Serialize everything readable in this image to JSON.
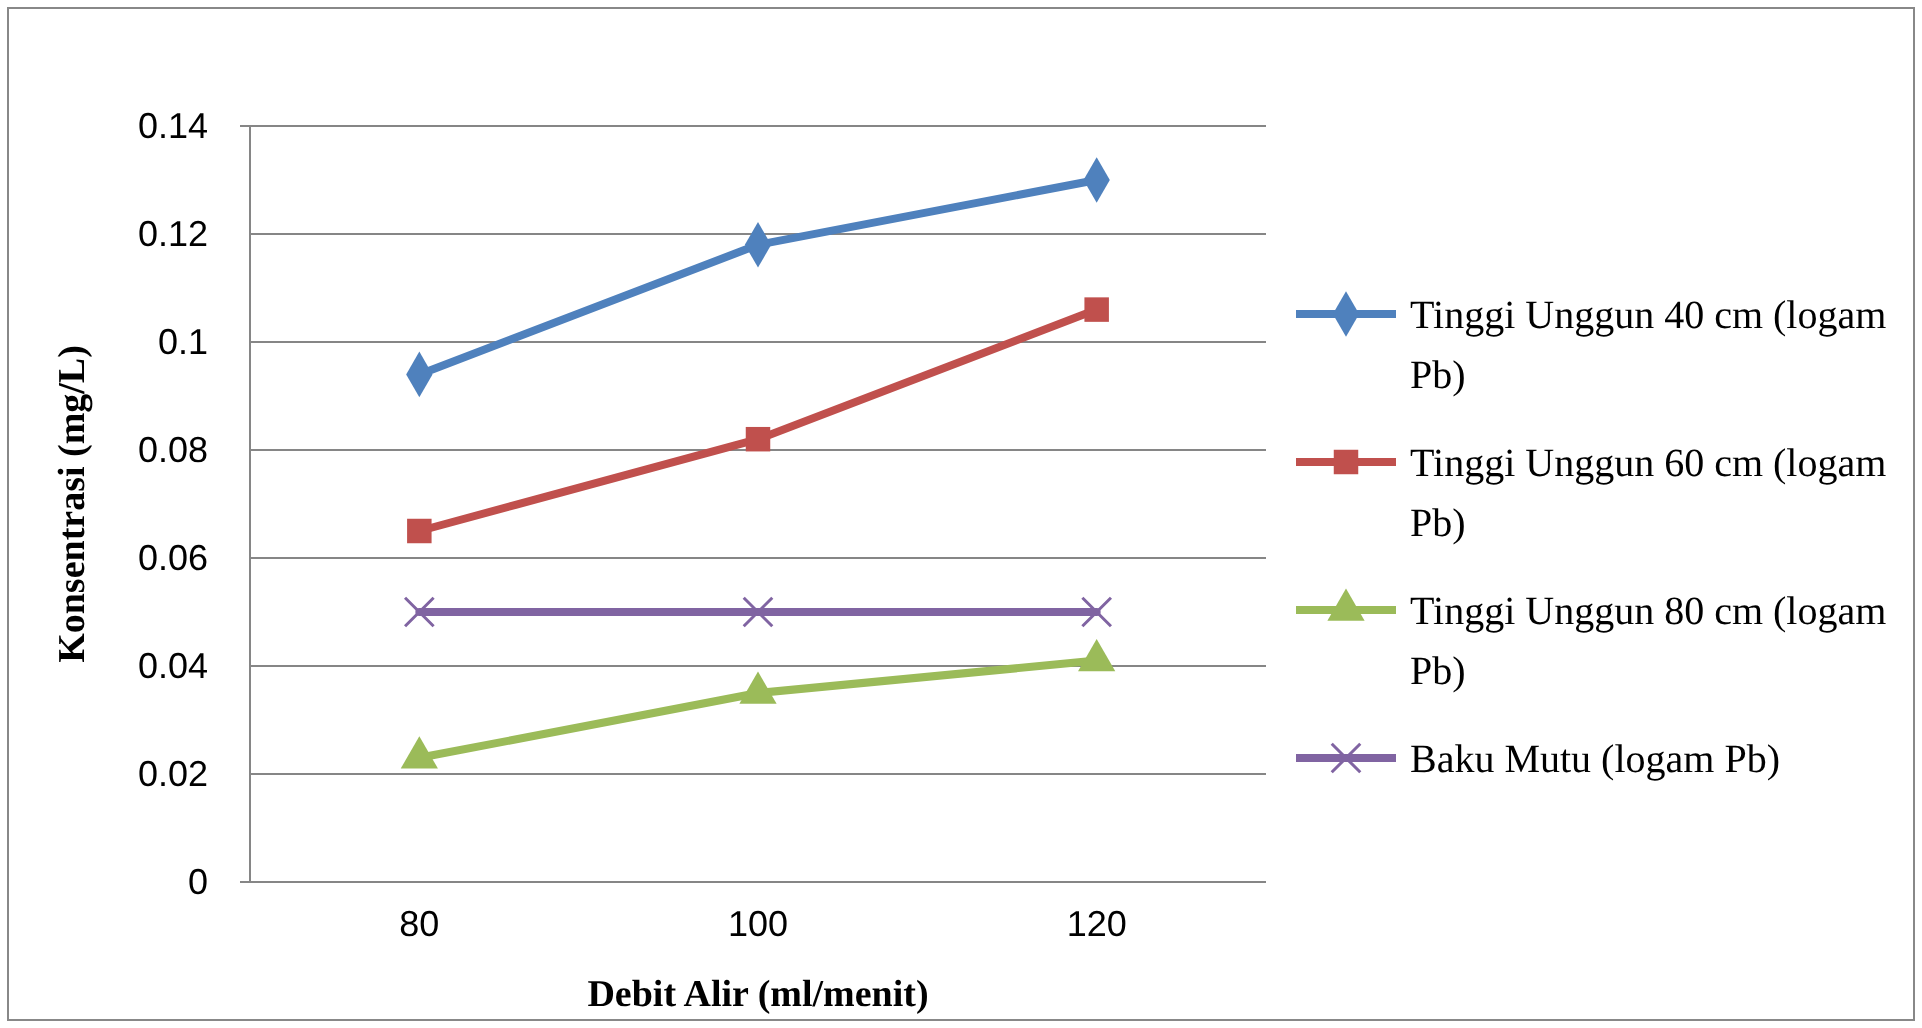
{
  "chart_data": {
    "type": "line",
    "xlabel": "Debit Alir (ml/menit)",
    "ylabel": "Konsentrasi (mg/L)",
    "categories": [
      "80",
      "100",
      "120"
    ],
    "ylim": [
      0,
      0.14
    ],
    "yticks": [
      0,
      0.02,
      0.04,
      0.06,
      0.08,
      0.1,
      0.12,
      0.14
    ],
    "grid": "y",
    "legend": "right",
    "series": [
      {
        "name": "Tinggi Unggun 40 cm (logam Pb)",
        "color": "#4f81bd",
        "marker": "diamond",
        "values": [
          0.094,
          0.118,
          0.13
        ]
      },
      {
        "name": "Tinggi Unggun 60 cm (logam Pb)",
        "color": "#c0504d",
        "marker": "square",
        "values": [
          0.065,
          0.082,
          0.106
        ]
      },
      {
        "name": "Tinggi Unggun 80 cm (logam Pb)",
        "color": "#9bbb59",
        "marker": "triangle",
        "values": [
          0.023,
          0.035,
          0.041
        ]
      },
      {
        "name": "Baku Mutu (logam Pb)",
        "color": "#8064a2",
        "marker": "cross",
        "values": [
          0.05,
          0.05,
          0.05
        ]
      }
    ]
  }
}
